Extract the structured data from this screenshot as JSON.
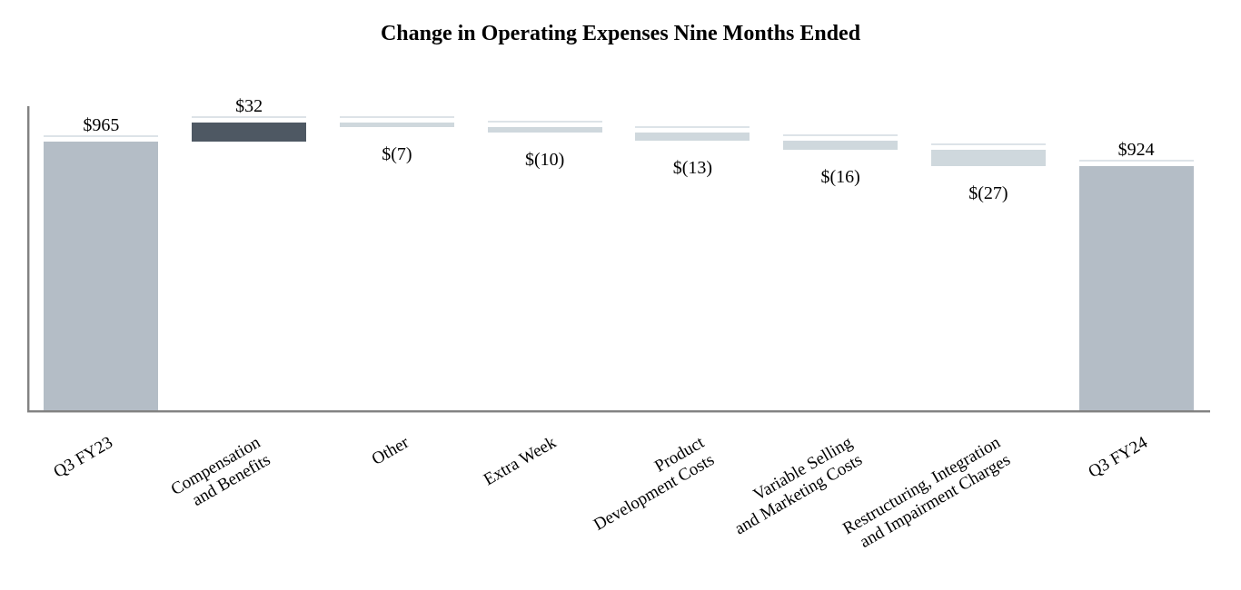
{
  "chart_data": {
    "type": "bar",
    "subtype": "waterfall",
    "title": "Change in Operating Expenses Nine Months Ended",
    "legend": "none",
    "gridlines": "none",
    "value_axis_labels": "none",
    "bars": [
      {
        "category": "Q3 FY23",
        "label_lines": [
          "Q3 FY23"
        ],
        "value": 965,
        "display_value": "$965",
        "role": "total"
      },
      {
        "category": "Compensation and Benefits",
        "label_lines": [
          "Compensation",
          "and Benefits"
        ],
        "value": 32,
        "display_value": "$32",
        "role": "increase"
      },
      {
        "category": "Other",
        "label_lines": [
          "Other"
        ],
        "value": -7,
        "display_value": "$(7)",
        "role": "decrease"
      },
      {
        "category": "Extra Week",
        "label_lines": [
          "Extra Week"
        ],
        "value": -10,
        "display_value": "$(10)",
        "role": "decrease"
      },
      {
        "category": "Product Development Costs",
        "label_lines": [
          "Product",
          "Development Costs"
        ],
        "value": -13,
        "display_value": "$(13)",
        "role": "decrease"
      },
      {
        "category": "Variable Selling and Marketing Costs",
        "label_lines": [
          "Variable Selling",
          "and Marketing Costs"
        ],
        "value": -16,
        "display_value": "$(16)",
        "role": "decrease"
      },
      {
        "category": "Restructuring, Integration and Impairment Charges",
        "label_lines": [
          "Restructuring, Integration",
          "and Impairment Charges"
        ],
        "value": -27,
        "display_value": "$(27)",
        "role": "decrease"
      },
      {
        "category": "Q3 FY24",
        "label_lines": [
          "Q3 FY24"
        ],
        "value": 924,
        "display_value": "$924",
        "role": "total"
      }
    ],
    "colors": {
      "total_bar": "#b4bdc6",
      "increase_bar": "#4e5863",
      "decrease_bar": "#cfd8dd",
      "bar_top_edge": "#dde3e8",
      "axis_line": "#828282",
      "axis_shadow": "#c9c9c9",
      "text": "#000000",
      "background": "#ffffff"
    }
  }
}
